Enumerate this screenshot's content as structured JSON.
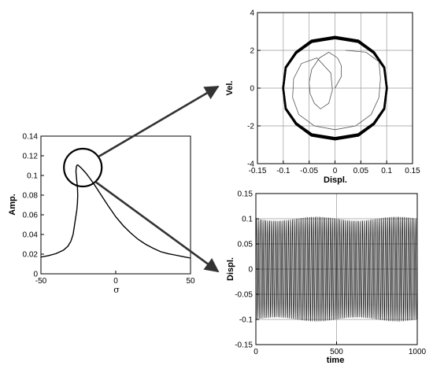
{
  "chart_data": [
    {
      "id": "frequency-response",
      "type": "line",
      "xlabel": "σ",
      "ylabel": "Amp.",
      "xlim": [
        -50,
        50
      ],
      "ylim": [
        0,
        0.14
      ],
      "xticks": [
        "-50",
        "0",
        "50"
      ],
      "yticks": [
        "0",
        "0.02",
        "0.04",
        "0.06",
        "0.08",
        "0.1",
        "0.12",
        "0.14"
      ],
      "grid": false,
      "series": [
        {
          "x": [
            -50,
            -45,
            -40,
            -35,
            -32,
            -30,
            -28.5,
            -27.5,
            -26.5,
            -26
          ],
          "y": [
            0.017,
            0.0185,
            0.0205,
            0.024,
            0.028,
            0.033,
            0.04,
            0.05,
            0.06,
            0.065
          ]
        },
        {
          "x": [
            -26,
            -25.6,
            -25.4,
            -25.6,
            -26.2,
            -26.6,
            -26.3,
            -25.6
          ],
          "y": [
            0.065,
            0.072,
            0.08,
            0.088,
            0.097,
            0.104,
            0.109,
            0.111
          ]
        },
        {
          "x": [
            -25.6,
            -23,
            -20,
            -17,
            -14,
            -11,
            -8,
            -5,
            -2,
            0,
            5,
            10,
            15,
            20,
            25,
            30,
            35,
            40,
            45,
            50
          ],
          "y": [
            0.111,
            0.1075,
            0.1025,
            0.0965,
            0.09,
            0.083,
            0.076,
            0.069,
            0.0625,
            0.058,
            0.049,
            0.0415,
            0.035,
            0.03,
            0.026,
            0.0225,
            0.0205,
            0.019,
            0.0175,
            0.016
          ]
        }
      ],
      "highlight_circle": {
        "x": -22,
        "y": 0.108
      }
    },
    {
      "id": "phase-portrait",
      "type": "line",
      "xlabel": "Displ.",
      "ylabel": "Vel.",
      "xlim": [
        -0.15,
        0.15
      ],
      "ylim": [
        -4,
        4
      ],
      "xticks": [
        "-0.15",
        "-0.1",
        "-0.05",
        "0",
        "0.05",
        "0.1",
        "0.15"
      ],
      "yticks": [
        "-4",
        "-2",
        "0",
        "2",
        "4"
      ],
      "grid": true,
      "series": [
        {
          "x": [
            -0.1,
            -0.095,
            -0.075,
            -0.045,
            0,
            0.045,
            0.075,
            0.095,
            0.1,
            0.095,
            0.075,
            0.045,
            0,
            -0.045,
            -0.075,
            -0.095,
            -0.1
          ],
          "y": [
            0,
            1.1,
            1.9,
            2.5,
            2.7,
            2.5,
            1.9,
            1.1,
            0,
            -1.1,
            -1.9,
            -2.5,
            -2.7,
            -2.5,
            -1.9,
            -1.1,
            0
          ]
        },
        {
          "x": [
            0,
            0.012,
            0.012,
            0.005,
            -0.012,
            -0.03,
            -0.045,
            -0.05,
            -0.048,
            -0.04,
            -0.028,
            -0.012,
            -0.005,
            -0.008,
            -0.035,
            -0.065,
            -0.08,
            -0.082,
            -0.07,
            -0.04,
            0,
            0.04,
            0.07,
            0.085,
            0.088,
            0.085,
            0.06,
            0.02
          ],
          "y": [
            0,
            0.6,
            1.2,
            1.6,
            1.9,
            1.6,
            1.0,
            0.3,
            -0.3,
            -0.8,
            -1.1,
            -0.8,
            -0.1,
            0.8,
            1.6,
            1.3,
            0.5,
            -0.5,
            -1.4,
            -2.0,
            -2.2,
            -2.0,
            -1.4,
            -0.5,
            0.5,
            1.4,
            1.9,
            2.0
          ]
        }
      ]
    },
    {
      "id": "time-history",
      "type": "line",
      "xlabel": "time",
      "ylabel": "Displ.",
      "xlim": [
        0,
        1000
      ],
      "ylim": [
        -0.15,
        0.15
      ],
      "xticks": [
        "0",
        "500",
        "1000"
      ],
      "yticks": [
        "-0.15",
        "-0.1",
        "-0.05",
        "0",
        "0.05",
        "0.1",
        "0.15"
      ],
      "grid": true,
      "series": [
        {
          "amplitude": 0.1,
          "cycles": 85,
          "modulation_period": 500
        }
      ]
    }
  ]
}
